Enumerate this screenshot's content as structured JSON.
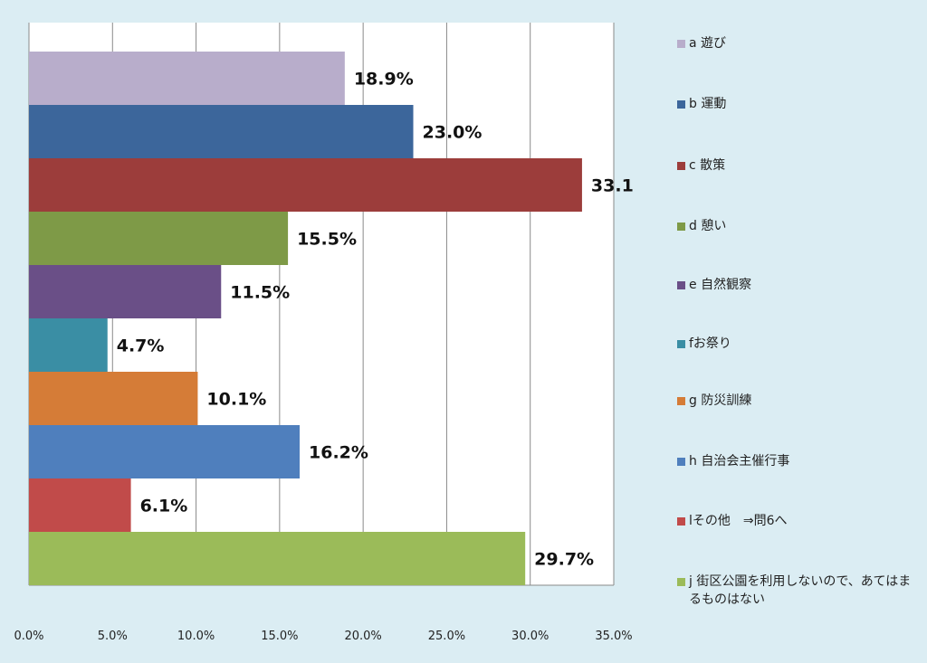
{
  "chart_data": {
    "type": "bar",
    "orientation": "horizontal",
    "categories": [
      "a 遊び",
      "b 運動",
      "c 散策",
      "d 憩い",
      "e 自然観察",
      "fお祭り",
      "g 防災訓練",
      "h 自治会主催行事",
      "lその他　⇒問6へ",
      "j 街区公園を利用しないので、あてはまるものはない"
    ],
    "values": [
      18.9,
      23.0,
      33.1,
      15.5,
      11.5,
      4.7,
      10.1,
      16.2,
      6.1,
      29.7
    ],
    "value_labels": [
      "18.9%",
      "23.0%",
      "33.1%",
      "15.5%",
      "11.5%",
      "4.7%",
      "10.1%",
      "16.2%",
      "6.1%",
      "29.7%"
    ],
    "colors": [
      "#b8adcb",
      "#3c669b",
      "#9c3d3b",
      "#7e9a47",
      "#6a4f87",
      "#3a8ea4",
      "#d57c37",
      "#4f7fbd",
      "#c14b4a",
      "#9bbb59"
    ],
    "xlim": [
      0,
      35
    ],
    "xticks": [
      "0.0%",
      "5.0%",
      "10.0%",
      "15.0%",
      "20.0%",
      "25.0%",
      "30.0%",
      "35.0%"
    ],
    "grid": true,
    "legend": "right"
  }
}
